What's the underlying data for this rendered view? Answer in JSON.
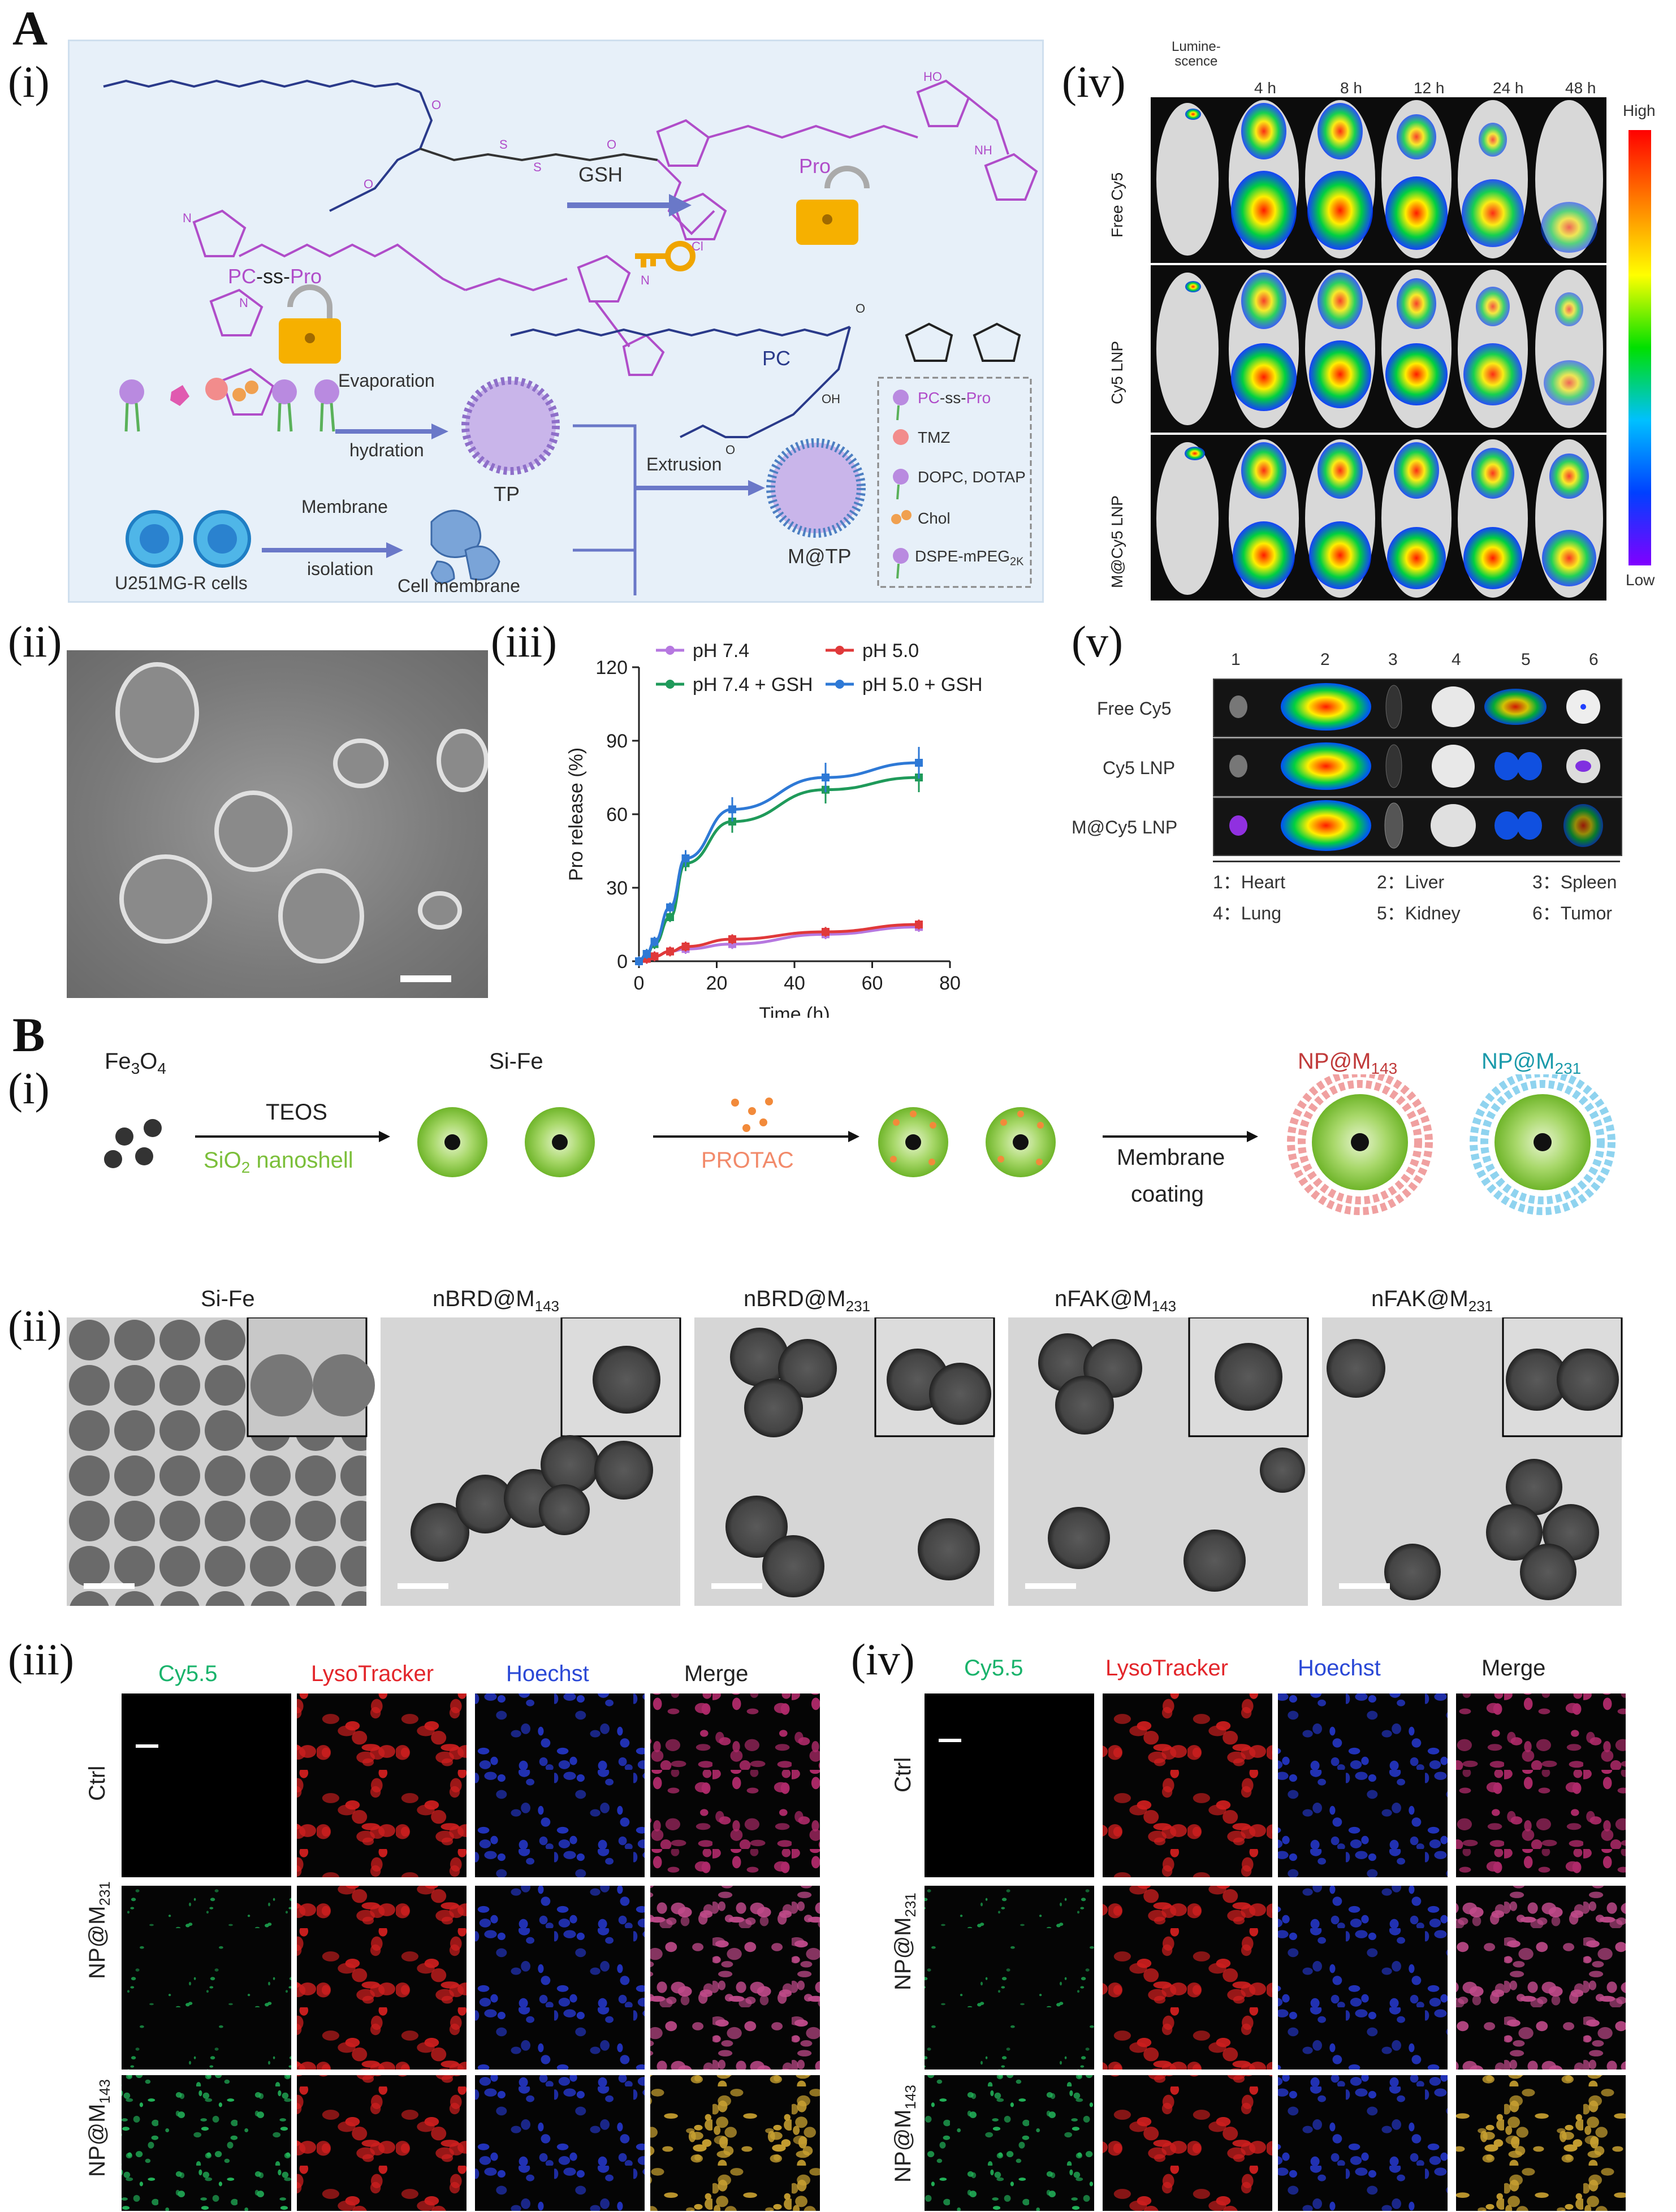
{
  "panels": {
    "A": "A",
    "B": "B",
    "A_i": "(i)",
    "A_ii": "(ii)",
    "A_iii": "(iii)",
    "A_iv": "(iv)",
    "A_v": "(v)",
    "B_i": "(i)",
    "B_ii": "(ii)",
    "B_iii": "(iii)",
    "B_iv": "(iv)"
  },
  "schematic_A": {
    "gsh": "GSH",
    "pro": "Pro",
    "pc_ss_pro_a": "PC",
    "pc_ss_pro_b": "-ss-",
    "pc_ss_pro_c": "Pro",
    "pc": "PC",
    "evaporation": "Evaporation",
    "hydration": "hydration",
    "tp": "TP",
    "extrusion": "Extrusion",
    "membrane": "Membrane",
    "isolation": "isolation",
    "cells": "U251MG-R cells",
    "cell_membrane": "Cell membrane",
    "mtp": "M@TP",
    "legend": {
      "item1_a": "PC",
      "item1_b": "-ss-",
      "item1_c": "Pro",
      "item2": "TMZ",
      "item3": "DOPC, DOTAP",
      "item4": "Chol",
      "item5_base": "DSPE-mPEG",
      "item5_sub": "2K"
    }
  },
  "chart_data": {
    "type": "line",
    "xlabel": "Time (h)",
    "ylabel": "Pro release (%)",
    "xlim": [
      0,
      80
    ],
    "ylim": [
      0,
      120
    ],
    "xticks": [
      0,
      20,
      40,
      60,
      80
    ],
    "yticks": [
      0,
      30,
      60,
      90,
      120
    ],
    "x": [
      0,
      2,
      4,
      8,
      12,
      24,
      48,
      72
    ],
    "series": [
      {
        "name": "pH 7.4",
        "color": "#b678e0",
        "values": [
          0,
          1,
          2,
          4,
          5,
          7,
          11,
          14
        ]
      },
      {
        "name": "pH 5.0",
        "color": "#e0393a",
        "values": [
          0,
          1,
          2,
          4,
          6,
          9,
          12,
          15
        ]
      },
      {
        "name": "pH 7.4 + GSH",
        "color": "#1f9a5a",
        "values": [
          0,
          3,
          7,
          18,
          40,
          57,
          70,
          75
        ]
      },
      {
        "name": "pH 5.0 + GSH",
        "color": "#2e79d6",
        "values": [
          0,
          3,
          8,
          22,
          42,
          62,
          75,
          81
        ]
      }
    ],
    "legend_position": "top",
    "grid": false
  },
  "ivis": {
    "columns": [
      "Lumine-\nscence",
      "4 h",
      "8 h",
      "12 h",
      "24 h",
      "48 h"
    ],
    "rows": [
      "Free Cy5",
      "Cy5 LNP",
      "M@Cy5 LNP"
    ],
    "scale_high": "High",
    "scale_low": "Low"
  },
  "exvivo": {
    "columns": [
      "1",
      "2",
      "3",
      "4",
      "5",
      "6"
    ],
    "rows": [
      "Free Cy5",
      "Cy5 LNP",
      "M@Cy5 LNP"
    ],
    "key": [
      "1：Heart",
      "2：Liver",
      "3：Spleen",
      "4：Lung",
      "5：Kidney",
      "6：Tumor"
    ]
  },
  "schematic_B": {
    "fe3o4_base": "Fe",
    "fe3o4_s1": "3",
    "fe3o4_mid": "O",
    "fe3o4_s2": "4",
    "sife": "Si-Fe",
    "teos": "TEOS",
    "sio2_base": "SiO",
    "sio2_sub": "2",
    "sio2_rest": " nanoshell",
    "protac": "PROTAC",
    "membrane": "Membrane",
    "coating": "coating",
    "np143_base": "NP@M",
    "np143_sub": "143",
    "np231_base": "NP@M",
    "np231_sub": "231"
  },
  "tem_B": {
    "labels": [
      {
        "base": "Si-Fe",
        "sub": ""
      },
      {
        "base": "nBRD@M",
        "sub": "143"
      },
      {
        "base": "nBRD@M",
        "sub": "231"
      },
      {
        "base": "nFAK@M",
        "sub": "143"
      },
      {
        "base": "nFAK@M",
        "sub": "231"
      }
    ]
  },
  "confocal": {
    "channels": [
      "Cy5.5",
      "LysoTracker",
      "Hoechst",
      "Merge"
    ],
    "channel_colors": [
      "#19b36b",
      "#e3262b",
      "#2a48d6",
      "#111111"
    ],
    "rows": [
      {
        "base": "Ctrl",
        "sub": ""
      },
      {
        "base": "NP@M",
        "sub": "231"
      },
      {
        "base": "NP@M",
        "sub": "143"
      }
    ]
  }
}
